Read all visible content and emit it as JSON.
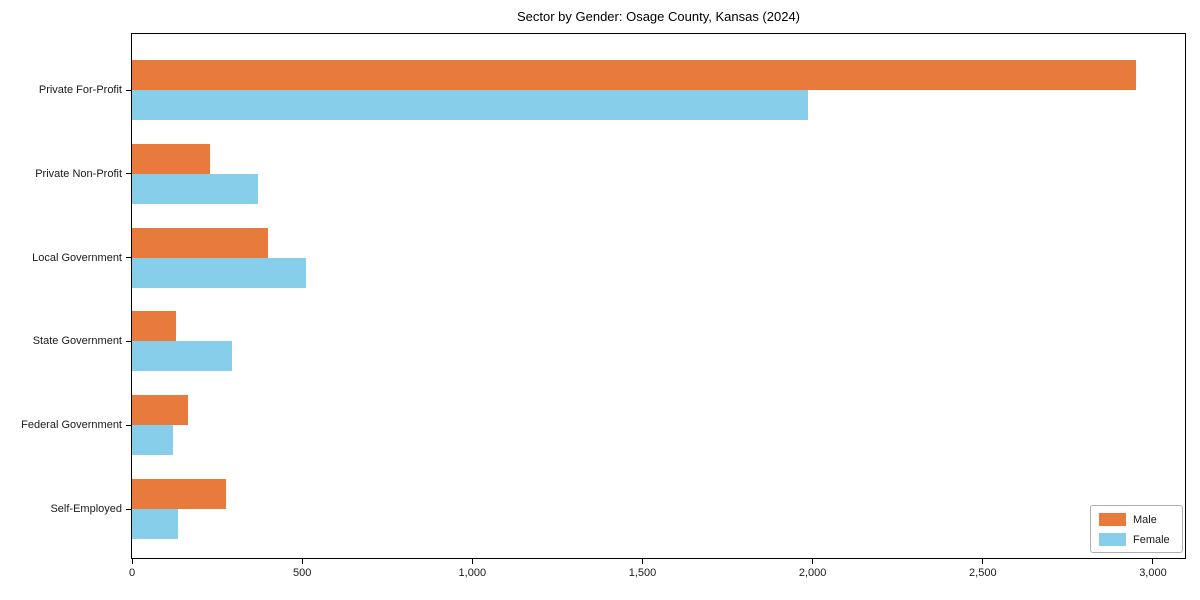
{
  "title": "Sector by Gender: Osage County, Kansas (2024)",
  "colors": {
    "male": "#e87a3b",
    "female": "#87ceeb",
    "axis": "#000000",
    "legend_border": "#b0b0b0"
  },
  "legend": {
    "position": "lower right",
    "items": [
      {
        "label": "Male",
        "color": "#e87a3b"
      },
      {
        "label": "Female",
        "color": "#87ceeb"
      }
    ]
  },
  "chart_data": {
    "type": "bar",
    "orientation": "horizontal",
    "title": "Sector by Gender: Osage County, Kansas (2024)",
    "categories": [
      "Private For-Profit",
      "Private Non-Profit",
      "Local Government",
      "State Government",
      "Federal Government",
      "Self-Employed"
    ],
    "series": [
      {
        "name": "Male",
        "color": "#e87a3b",
        "values": [
          2950,
          230,
          400,
          130,
          165,
          275
        ]
      },
      {
        "name": "Female",
        "color": "#87ceeb",
        "values": [
          1985,
          370,
          510,
          295,
          120,
          135
        ]
      }
    ],
    "xlabel": "",
    "ylabel": "",
    "xlim": [
      0,
      3100
    ],
    "xticks": [
      0,
      500,
      1000,
      1500,
      2000,
      2500,
      3000
    ],
    "xtick_labels": [
      "0",
      "500",
      "1,000",
      "1,500",
      "2,000",
      "2,500",
      "3,000"
    ],
    "grid": false,
    "legend_position": "lower right",
    "frame": "full-box"
  }
}
